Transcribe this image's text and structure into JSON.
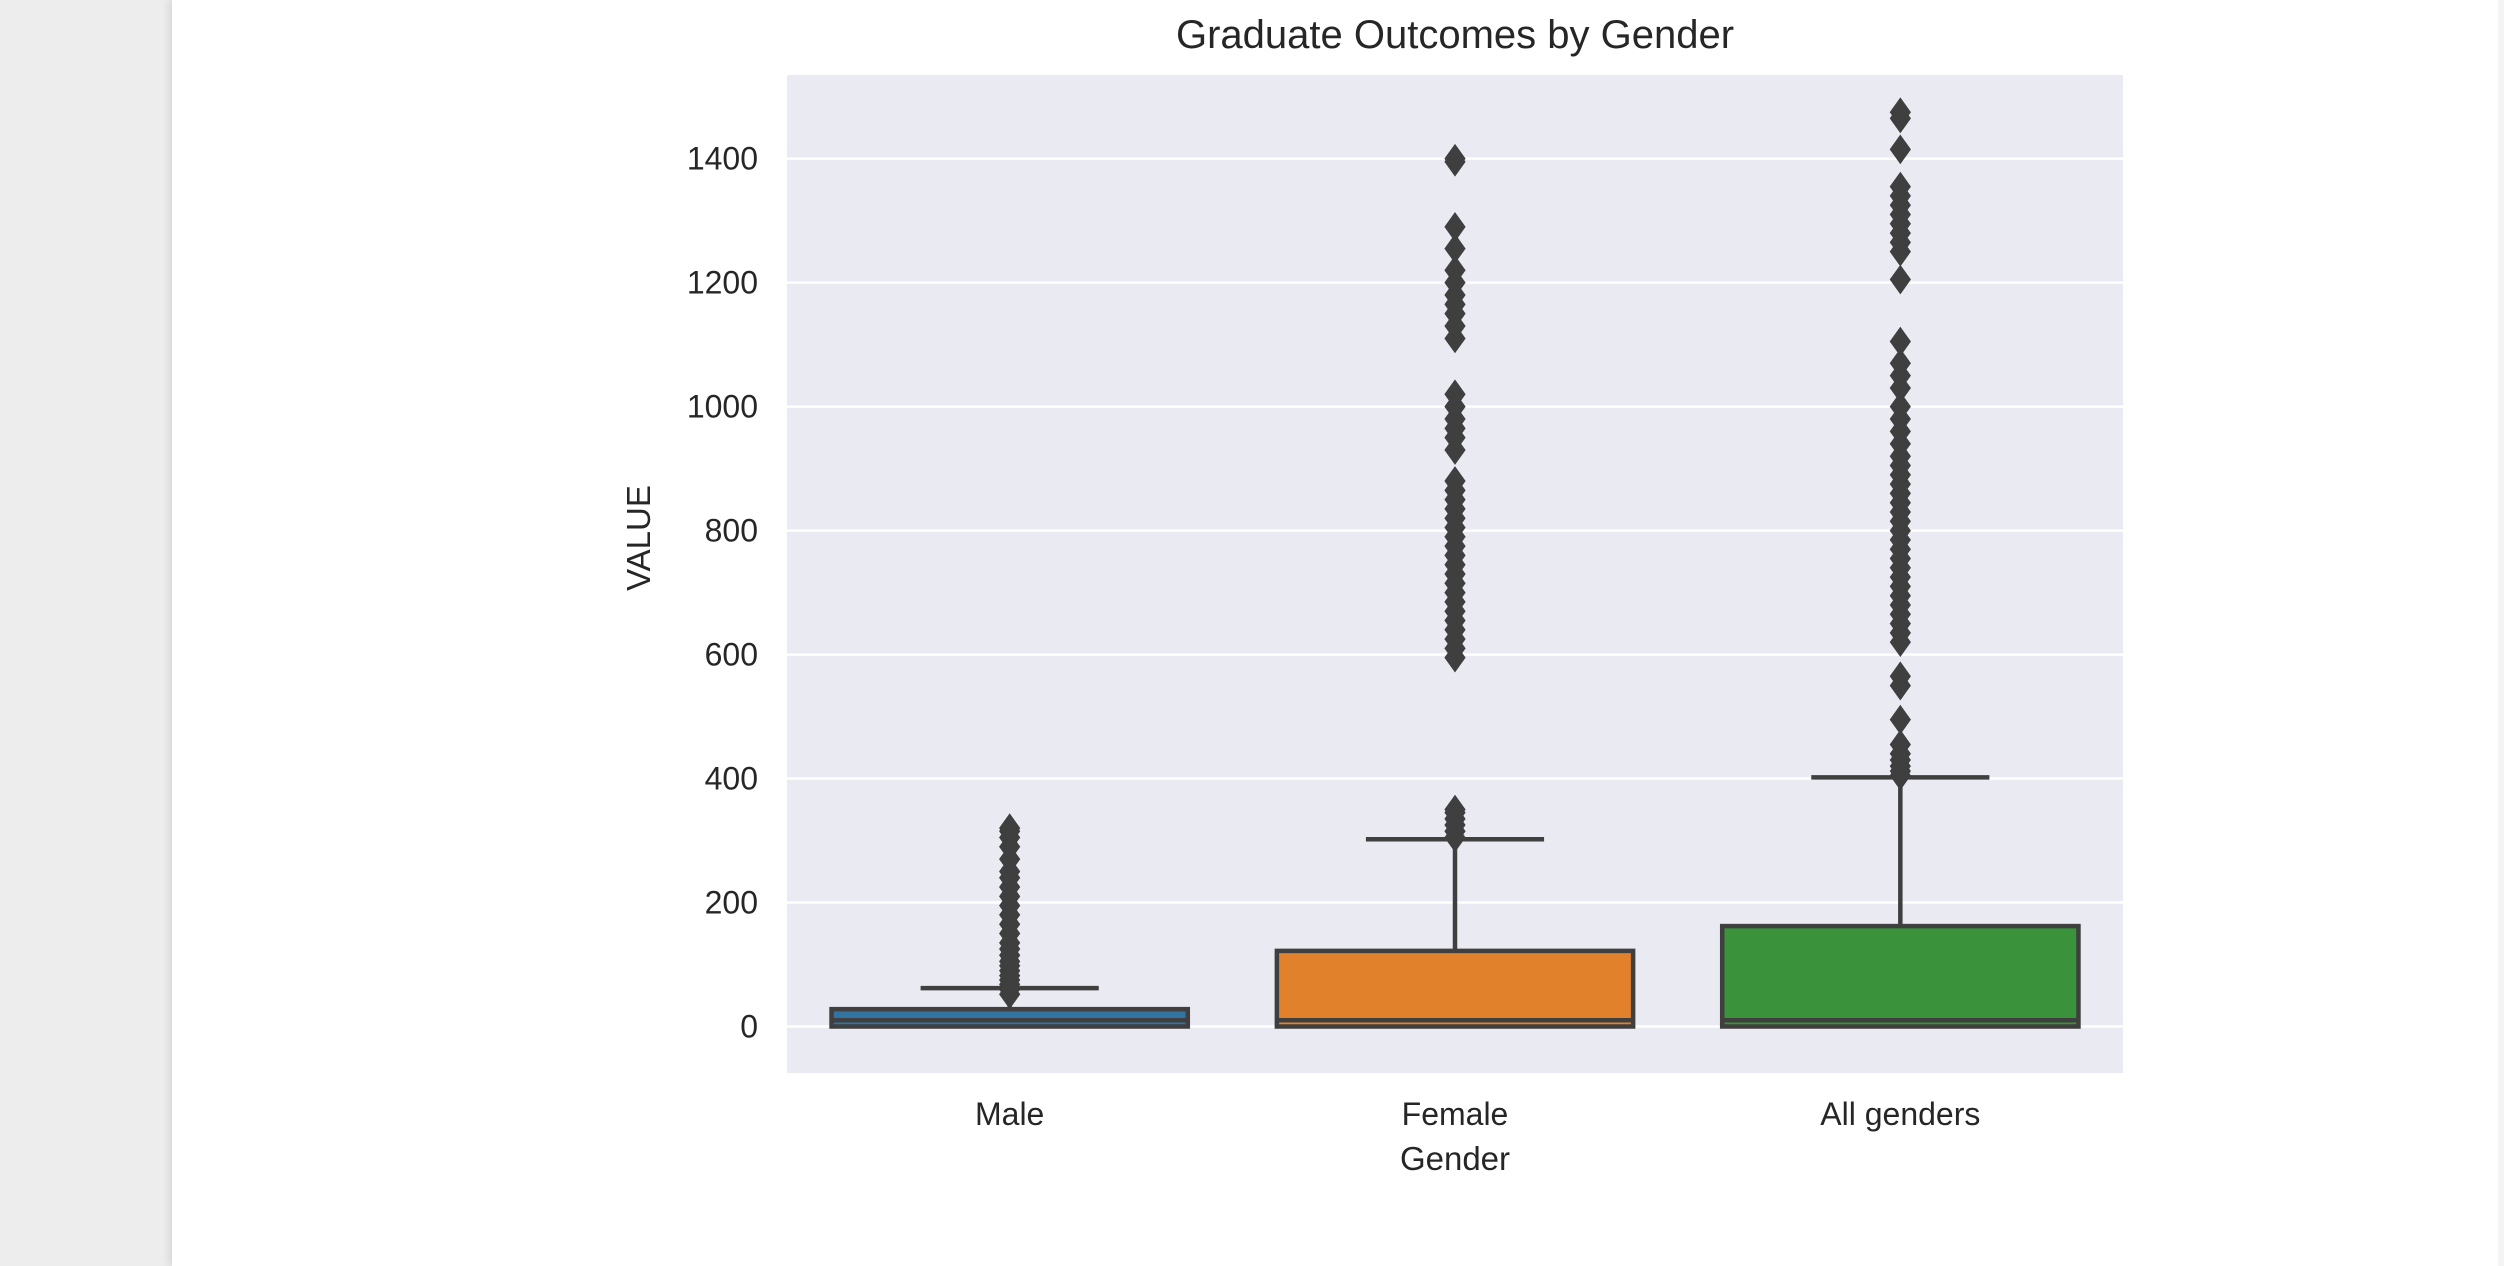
{
  "chart_data": {
    "type": "box",
    "title": "Graduate Outcomes by Gender",
    "xlabel": "Gender",
    "ylabel": "VALUE",
    "ylim": [
      -75,
      1535
    ],
    "yticks": [
      0,
      200,
      400,
      600,
      800,
      1000,
      1200,
      1400
    ],
    "grid": true,
    "legend": "none",
    "categories": [
      "Male",
      "Female",
      "All genders"
    ],
    "boxes": [
      {
        "category": "Male",
        "color": "#3274a1",
        "min": 0,
        "q1": 0,
        "median": 10,
        "q3": 28,
        "whisker_high": 62,
        "outliers": [
          52,
          60,
          68,
          75,
          82,
          90,
          98,
          105,
          115,
          125,
          135,
          150,
          165,
          180,
          195,
          210,
          225,
          240,
          250,
          270,
          290,
          305,
          315,
          320
        ]
      },
      {
        "category": "Female",
        "color": "#e1812c",
        "min": 0,
        "q1": 0,
        "median": 10,
        "q3": 122,
        "whisker_high": 302,
        "outliers": [
          305,
          315,
          325,
          335,
          345,
          350,
          595,
          610,
          625,
          640,
          655,
          670,
          685,
          700,
          715,
          730,
          745,
          760,
          775,
          790,
          805,
          820,
          835,
          850,
          865,
          880,
          930,
          950,
          965,
          980,
          1000,
          1020,
          1110,
          1130,
          1150,
          1165,
          1180,
          1200,
          1220,
          1255,
          1290,
          1395,
          1400
        ]
      },
      {
        "category": "All genders",
        "color": "#3a923a",
        "min": 0,
        "q1": 0,
        "median": 10,
        "q3": 162,
        "whisker_high": 402,
        "outliers": [
          405,
          412,
          420,
          430,
          440,
          455,
          495,
          550,
          565,
          620,
          635,
          650,
          665,
          680,
          695,
          710,
          725,
          740,
          755,
          770,
          785,
          800,
          815,
          830,
          845,
          860,
          875,
          890,
          905,
          920,
          940,
          960,
          980,
          1000,
          1030,
          1050,
          1070,
          1105,
          1205,
          1250,
          1265,
          1280,
          1295,
          1310,
          1325,
          1340,
          1355,
          1415,
          1465,
          1475
        ]
      }
    ]
  }
}
